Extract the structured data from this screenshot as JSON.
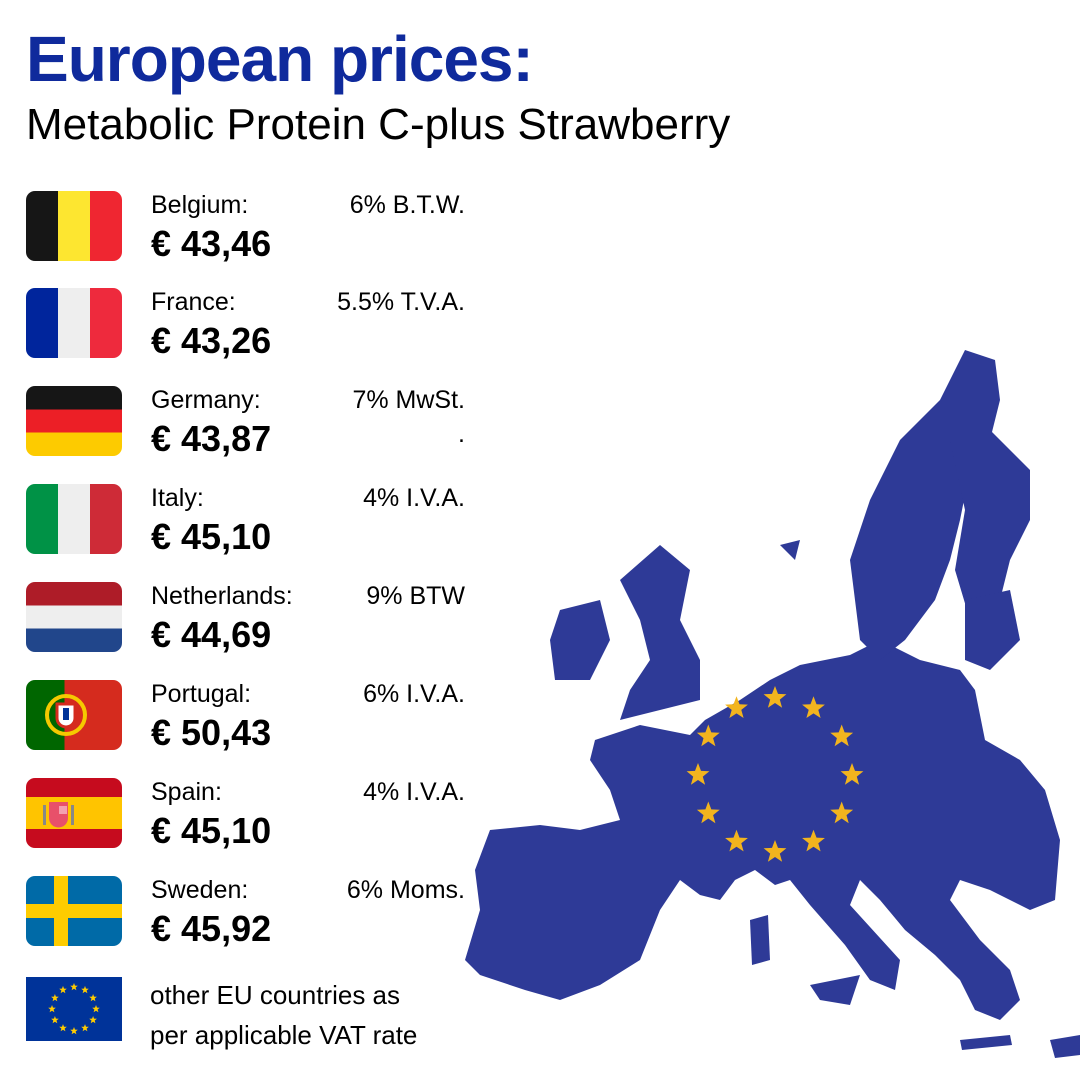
{
  "header": {
    "title": "European prices:",
    "subtitle": "Metabolic Protein C-plus Strawberry"
  },
  "countries": [
    {
      "name": "Belgium:",
      "vat": "6% B.T.W.",
      "price": "€ 43,46",
      "flag": "belgium-flag"
    },
    {
      "name": "France:",
      "vat": "5.5% T.V.A.",
      "price": "€ 43,26",
      "flag": "france-flag"
    },
    {
      "name": "Germany:",
      "vat": "7% MwSt.",
      "vat_extra": ".",
      "price": "€ 43,87",
      "flag": "germany-flag"
    },
    {
      "name": "Italy:",
      "vat": "4% I.V.A.",
      "price": "€ 45,10",
      "flag": "italy-flag"
    },
    {
      "name": "Netherlands:",
      "vat": "9% BTW",
      "price": "€ 44,69",
      "flag": "netherlands-flag"
    },
    {
      "name": "Portugal:",
      "vat": "6% I.V.A.",
      "price": "€ 50,43",
      "flag": "portugal-flag"
    },
    {
      "name": "Spain:",
      "vat": "4% I.V.A.",
      "price": "€ 45,10",
      "flag": "spain-flag"
    },
    {
      "name": "Sweden:",
      "vat": "6% Moms.",
      "price": "€ 45,92",
      "flag": "sweden-flag"
    }
  ],
  "other": {
    "line1": "other EU countries as",
    "line2": "per applicable VAT rate"
  },
  "colors": {
    "title": "#0f2a9c",
    "map": "#2e3a97",
    "stars": "#f2b41e",
    "eu_flag": "#003399"
  }
}
